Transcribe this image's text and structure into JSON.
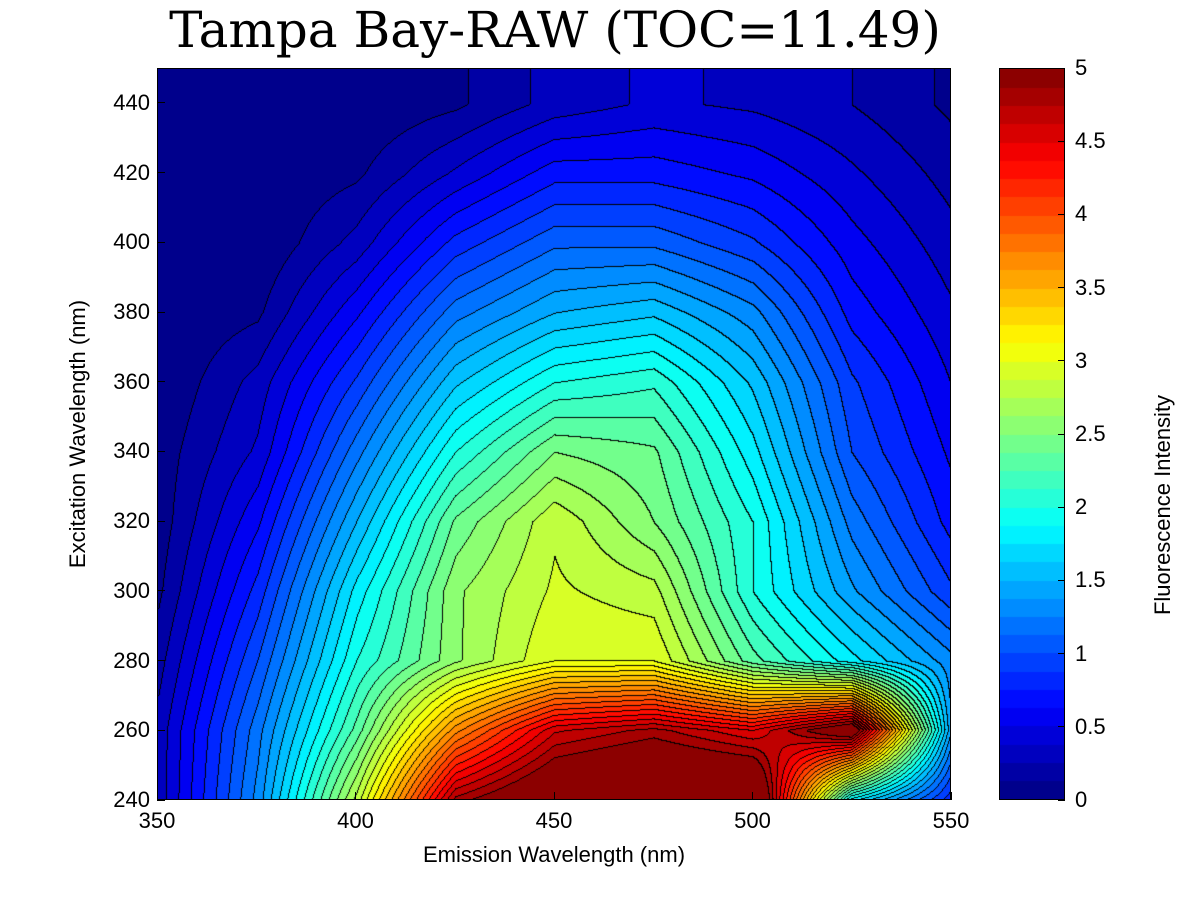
{
  "chart_data": {
    "type": "heatmap",
    "subtype": "filled-contour",
    "title": "Tampa Bay-RAW (TOC=11.49)",
    "xlabel": "Emission Wavelength (nm)",
    "ylabel": "Excitation Wavelength (nm)",
    "colorbar_label": "Fluorescence Intensity",
    "colormap": "jet",
    "xlim": [
      350,
      550
    ],
    "ylim": [
      240,
      450
    ],
    "clim": [
      0,
      5
    ],
    "x_ticks": [
      "350",
      "400",
      "450",
      "500",
      "550"
    ],
    "y_ticks": [
      "240",
      "260",
      "280",
      "300",
      "320",
      "340",
      "360",
      "380",
      "400",
      "420",
      "440"
    ],
    "colorbar_ticks": [
      "0",
      "0.5",
      "1",
      "1.5",
      "2",
      "2.5",
      "3",
      "3.5",
      "4",
      "4.5",
      "5"
    ],
    "contour_step": 0.125,
    "x": [
      350,
      375,
      400,
      425,
      450,
      475,
      500,
      525,
      550
    ],
    "y": [
      240,
      260,
      280,
      300,
      320,
      340,
      360,
      380,
      400,
      420,
      440
    ],
    "z": [
      [
        0.3,
        1.3,
        2.8,
        4.8,
        5.3,
        5.5,
        5.5,
        1.8,
        0.8
      ],
      [
        0.3,
        1.2,
        2.3,
        3.7,
        4.6,
        4.8,
        4.5,
        5.2,
        1.4
      ],
      [
        0.2,
        1.0,
        2.0,
        2.6,
        3.0,
        3.0,
        2.3,
        1.8,
        1.3
      ],
      [
        0.1,
        0.8,
        1.8,
        2.6,
        2.9,
        2.8,
        2.0,
        1.4,
        0.9
      ],
      [
        0.05,
        0.6,
        1.5,
        2.4,
        2.85,
        2.5,
        2.0,
        1.2,
        0.7
      ],
      [
        0.05,
        0.4,
        1.2,
        2.0,
        2.5,
        2.4,
        1.8,
        1.0,
        0.6
      ],
      [
        0.0,
        0.3,
        0.9,
        1.6,
        2.0,
        2.1,
        1.6,
        0.9,
        0.5
      ],
      [
        0.0,
        0.1,
        0.6,
        1.2,
        1.5,
        1.6,
        1.3,
        0.7,
        0.4
      ],
      [
        0.0,
        0.0,
        0.3,
        0.8,
        1.1,
        1.1,
        0.9,
        0.55,
        0.3
      ],
      [
        0.0,
        0.0,
        0.1,
        0.4,
        0.7,
        0.7,
        0.6,
        0.4,
        0.2
      ],
      [
        0.0,
        0.0,
        0.0,
        0.1,
        0.3,
        0.4,
        0.35,
        0.25,
        0.1
      ]
    ],
    "grid": false,
    "legend": "colorbar-right"
  }
}
